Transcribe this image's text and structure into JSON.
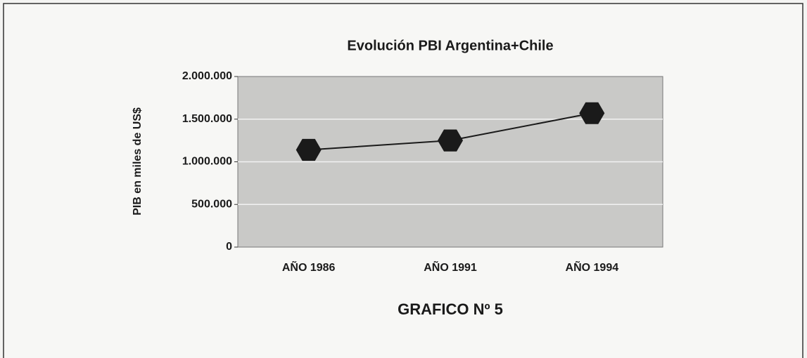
{
  "chart_data": {
    "type": "line",
    "title": "Evolución PBI Argentina+Chile",
    "y_label": "PIB en miles de US$",
    "caption": "GRAFICO Nº 5",
    "categories": [
      "AÑO 1986",
      "AÑO 1991",
      "AÑO 1994"
    ],
    "series": [
      {
        "name": "PBI",
        "color": "#1a1a1a",
        "values": [
          1140000,
          1250000,
          1570000
        ]
      }
    ],
    "ylim": [
      0,
      2000000
    ],
    "yticks": [
      0,
      {
        "value": 500000,
        "label": "500.000"
      },
      {
        "value": 1000000,
        "label": "1.000.000"
      },
      {
        "value": 1500000,
        "label": "1.500.000"
      },
      {
        "value": 2000000,
        "label": "2.000.000"
      }
    ],
    "grid": true
  }
}
